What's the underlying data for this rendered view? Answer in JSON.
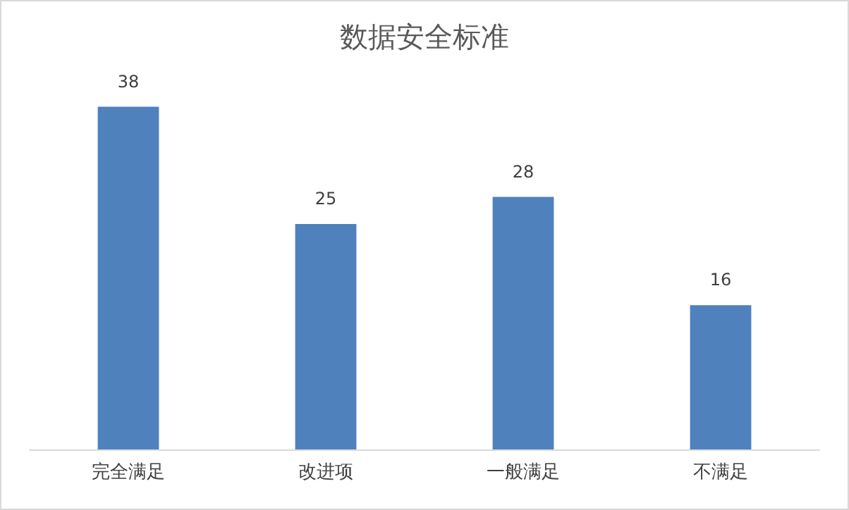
{
  "chart_data": {
    "type": "bar",
    "title": "数据安全标准",
    "categories": [
      "完全满足",
      "改进项",
      "一般满足",
      "不满足"
    ],
    "values": [
      38,
      25,
      28,
      16
    ],
    "color": "#4f81bd",
    "data_labels": true
  }
}
